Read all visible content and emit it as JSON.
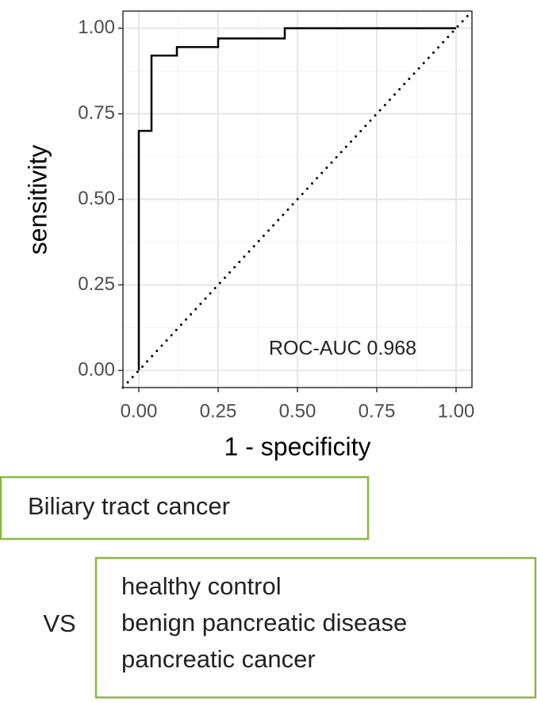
{
  "chart_data": {
    "type": "step-line",
    "xlabel": "1 - specificity",
    "ylabel": "sensitivity",
    "annotation": "ROC-AUC 0.968",
    "series": [
      {
        "color": "#000000",
        "x": [
          0,
          0,
          0.04,
          0.04,
          0.12,
          0.12,
          0.25,
          0.25,
          0.46,
          0.46,
          1
        ],
        "y": [
          0,
          0.7,
          0.7,
          0.92,
          0.92,
          0.945,
          0.945,
          0.97,
          0.97,
          1.0,
          1.0
        ]
      }
    ],
    "reference_line": {
      "slope": 1,
      "intercept": 0,
      "style": "dotted"
    },
    "xlim": [
      -0.05,
      1.05
    ],
    "ylim": [
      -0.05,
      1.05
    ],
    "xticks": [
      {
        "value": 0,
        "label": "0.00"
      },
      {
        "value": 0.25,
        "label": "0.25"
      },
      {
        "value": 0.5,
        "label": "0.50"
      },
      {
        "value": 0.75,
        "label": "0.75"
      },
      {
        "value": 1,
        "label": "1.00"
      }
    ],
    "yticks": [
      {
        "value": 0,
        "label": "0.00"
      },
      {
        "value": 0.25,
        "label": "0.25"
      },
      {
        "value": 0.5,
        "label": "0.50"
      },
      {
        "value": 0.75,
        "label": "0.75"
      },
      {
        "value": 1,
        "label": "1.00"
      }
    ],
    "minor_ticks": [
      0.125,
      0.375,
      0.625,
      0.875
    ],
    "grid": true
  },
  "boxes": {
    "target": "Biliary tract cancer",
    "versus": "VS",
    "comparison": [
      "healthy control",
      "benign pancreatic disease",
      "pancreatic cancer"
    ]
  }
}
